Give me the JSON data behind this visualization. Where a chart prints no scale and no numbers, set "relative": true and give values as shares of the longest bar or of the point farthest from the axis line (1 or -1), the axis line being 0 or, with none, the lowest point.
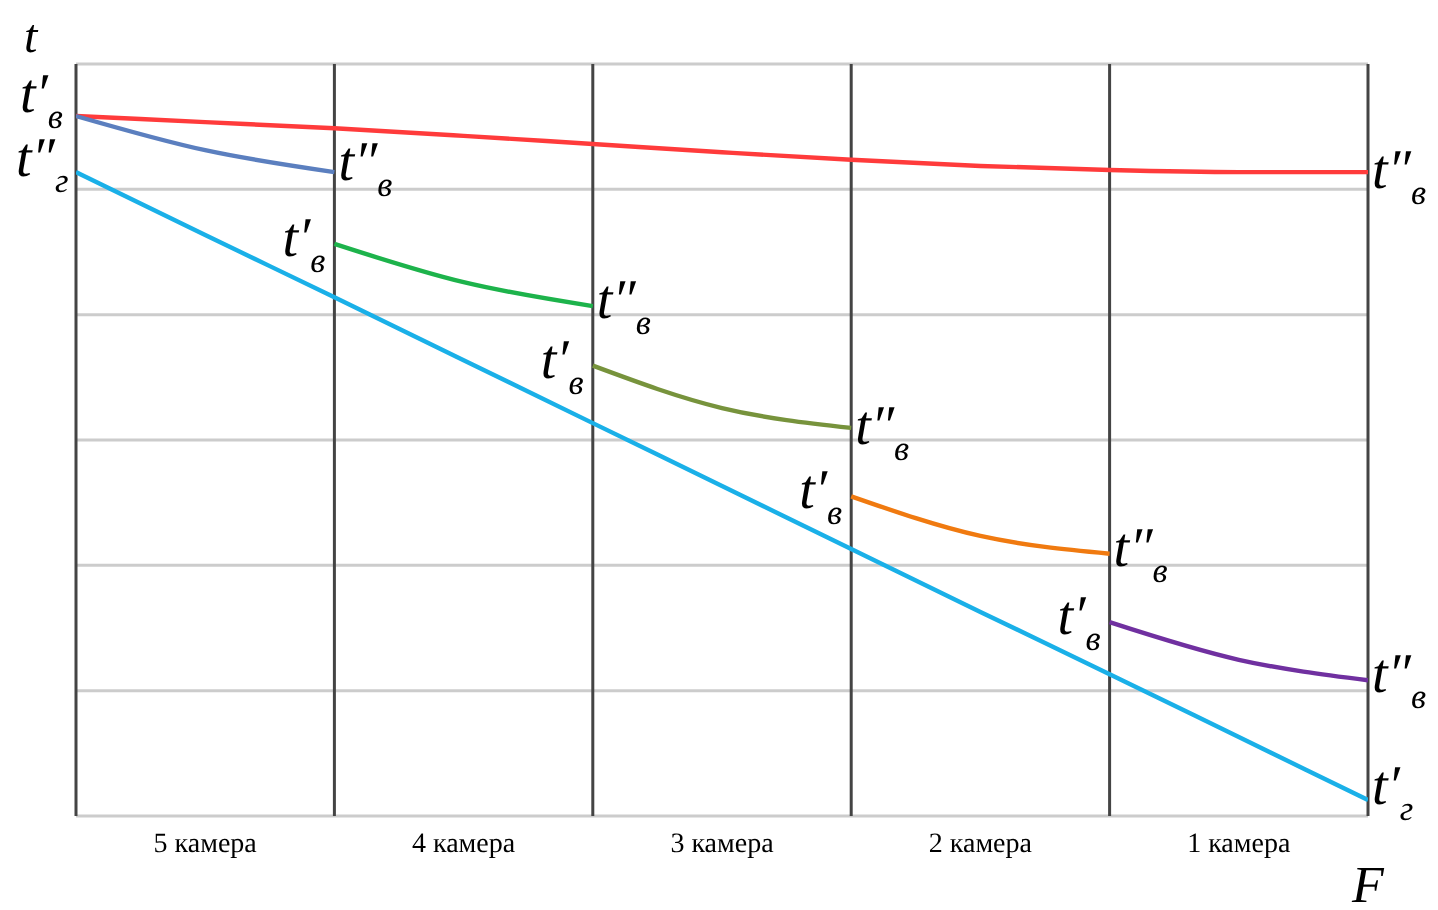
{
  "chart_data": {
    "type": "line",
    "relative": true,
    "ylabel": "t",
    "xlabel": "F",
    "grid": true,
    "categories": [
      null,
      "5 камера",
      null,
      "4 камера",
      null,
      "3 камера",
      null,
      "2 камера",
      null,
      "1 камера",
      null
    ],
    "series": [
      {
        "color": "#ff3b3b",
        "values": [
          1,
          0.991,
          0.982,
          0.971,
          0.959,
          0.947,
          0.936,
          0.927,
          0.921,
          0.918,
          0.918
        ]
      },
      {
        "color": "#1ab0e8",
        "values": [
          0.918,
          0.826,
          0.735,
          0.643,
          0.551,
          0.459,
          0.367,
          0.275,
          0.184,
          0.092,
          0
        ]
      },
      {
        "color": "#5b7fbf",
        "values": [
          1,
          0.95,
          0.918,
          null,
          null,
          null,
          null,
          null,
          null,
          null,
          null
        ]
      },
      {
        "color": "#1db34b",
        "values": [
          null,
          null,
          0.813,
          0.757,
          0.722,
          null,
          null,
          null,
          null,
          null,
          null
        ]
      },
      {
        "color": "#77933c",
        "values": [
          null,
          null,
          null,
          null,
          0.635,
          0.573,
          0.544,
          null,
          null,
          null,
          null
        ]
      },
      {
        "color": "#f07a10",
        "values": [
          null,
          null,
          null,
          null,
          null,
          null,
          0.444,
          0.386,
          0.36,
          null,
          null
        ]
      },
      {
        "color": "#7030a0",
        "values": [
          null,
          null,
          null,
          null,
          null,
          null,
          null,
          null,
          0.26,
          0.205,
          0.175
        ]
      }
    ],
    "annotations": [
      "t′$_{в}$",
      "t″$_{г}$",
      "t″$_{в}$",
      "t′$_{в}$",
      "t″$_{в}$",
      "t′$_{в}$",
      "t″$_{в}$",
      "t′$_{в}$",
      "t″$_{в}$",
      "t′$_{в}$",
      "t″$_{в}$",
      "t″$_{в}$",
      "t′$_{г}$"
    ]
  }
}
